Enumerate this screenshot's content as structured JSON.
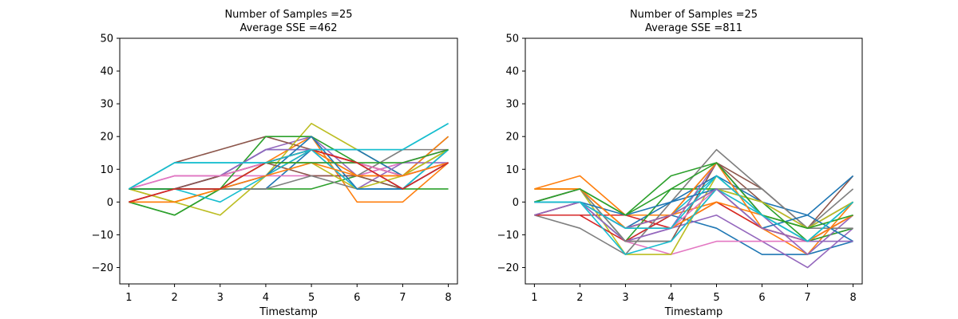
{
  "chart_data": [
    {
      "type": "line",
      "title_line1": "Number of Samples =25",
      "title_line2": "Average SSE =462",
      "xlabel": "Timestamp",
      "ylabel": "",
      "x": [
        1,
        2,
        3,
        4,
        5,
        6,
        7,
        8
      ],
      "xticks": [
        "1",
        "2",
        "3",
        "4",
        "5",
        "6",
        "7",
        "8"
      ],
      "yticks": [
        "−20",
        "−10",
        "0",
        "10",
        "20",
        "30",
        "40",
        "50"
      ],
      "ylim": [
        -25,
        50
      ],
      "xlim": [
        0.8,
        8.2
      ],
      "grid": false,
      "series": [
        {
          "color": "#1f77b4",
          "values": [
            4,
            4,
            4,
            4,
            16,
            12,
            4,
            16
          ]
        },
        {
          "color": "#ff7f0e",
          "values": [
            0,
            0,
            4,
            12,
            20,
            0,
            0,
            12
          ]
        },
        {
          "color": "#2ca02c",
          "values": [
            0,
            -4,
            4,
            4,
            4,
            8,
            4,
            4
          ]
        },
        {
          "color": "#d62728",
          "values": [
            0,
            4,
            8,
            12,
            16,
            12,
            8,
            12
          ]
        },
        {
          "color": "#9467bd",
          "values": [
            4,
            8,
            8,
            16,
            20,
            8,
            12,
            16
          ]
        },
        {
          "color": "#8c564b",
          "values": [
            4,
            12,
            16,
            20,
            16,
            12,
            4,
            12
          ]
        },
        {
          "color": "#e377c2",
          "values": [
            4,
            8,
            8,
            8,
            8,
            8,
            12,
            16
          ]
        },
        {
          "color": "#7f7f7f",
          "values": [
            4,
            4,
            8,
            12,
            16,
            8,
            16,
            16
          ]
        },
        {
          "color": "#bcbd22",
          "values": [
            4,
            0,
            -4,
            8,
            24,
            16,
            8,
            20
          ]
        },
        {
          "color": "#17becf",
          "values": [
            4,
            12,
            12,
            12,
            16,
            16,
            16,
            24
          ]
        },
        {
          "color": "#1f77b4",
          "values": [
            4,
            4,
            8,
            16,
            16,
            16,
            8,
            20
          ]
        },
        {
          "color": "#ff7f0e",
          "values": [
            4,
            4,
            4,
            12,
            16,
            8,
            8,
            20
          ]
        },
        {
          "color": "#2ca02c",
          "values": [
            0,
            -4,
            4,
            20,
            20,
            12,
            8,
            16
          ]
        },
        {
          "color": "#d62728",
          "values": [
            4,
            4,
            4,
            8,
            16,
            12,
            8,
            12
          ]
        },
        {
          "color": "#9467bd",
          "values": [
            4,
            4,
            8,
            16,
            16,
            4,
            12,
            12
          ]
        },
        {
          "color": "#8c564b",
          "values": [
            0,
            4,
            8,
            12,
            8,
            8,
            4,
            12
          ]
        },
        {
          "color": "#e377c2",
          "values": [
            4,
            8,
            8,
            12,
            12,
            12,
            8,
            12
          ]
        },
        {
          "color": "#7f7f7f",
          "values": [
            4,
            4,
            4,
            4,
            8,
            4,
            4,
            16
          ]
        },
        {
          "color": "#bcbd22",
          "values": [
            4,
            0,
            4,
            12,
            12,
            4,
            8,
            16
          ]
        },
        {
          "color": "#17becf",
          "values": [
            4,
            4,
            0,
            8,
            16,
            4,
            4,
            16
          ]
        },
        {
          "color": "#1f77b4",
          "values": [
            4,
            4,
            4,
            8,
            20,
            4,
            4,
            12
          ]
        },
        {
          "color": "#ff7f0e",
          "values": [
            0,
            0,
            4,
            8,
            12,
            8,
            8,
            12
          ]
        },
        {
          "color": "#2ca02c",
          "values": [
            4,
            4,
            4,
            12,
            12,
            12,
            12,
            16
          ]
        },
        {
          "color": "#d62728",
          "values": [
            0,
            4,
            4,
            12,
            16,
            12,
            4,
            12
          ]
        },
        {
          "color": "#17becf",
          "values": [
            4,
            12,
            12,
            12,
            16,
            16,
            16,
            24
          ]
        }
      ]
    },
    {
      "type": "line",
      "title_line1": "Number of Samples =25",
      "title_line2": "Average SSE =811",
      "xlabel": "Timestamp",
      "ylabel": "",
      "x": [
        1,
        2,
        3,
        4,
        5,
        6,
        7,
        8
      ],
      "xticks": [
        "1",
        "2",
        "3",
        "4",
        "5",
        "6",
        "7",
        "8"
      ],
      "yticks": [
        "−20",
        "−10",
        "0",
        "10",
        "20",
        "30",
        "40",
        "50"
      ],
      "ylim": [
        -25,
        50
      ],
      "xlim": [
        0.8,
        8.2
      ],
      "grid": false,
      "series": [
        {
          "color": "#1f77b4",
          "values": [
            0,
            0,
            -8,
            -4,
            -8,
            -16,
            -16,
            -12
          ]
        },
        {
          "color": "#ff7f0e",
          "values": [
            4,
            8,
            -4,
            -4,
            0,
            -8,
            -16,
            0
          ]
        },
        {
          "color": "#2ca02c",
          "values": [
            0,
            4,
            -4,
            8,
            12,
            -4,
            -8,
            0
          ]
        },
        {
          "color": "#d62728",
          "values": [
            -4,
            -4,
            -4,
            -8,
            0,
            -8,
            -12,
            -4
          ]
        },
        {
          "color": "#9467bd",
          "values": [
            -4,
            0,
            -12,
            -8,
            -4,
            -12,
            -20,
            -8
          ]
        },
        {
          "color": "#8c564b",
          "values": [
            -4,
            0,
            -12,
            -12,
            12,
            4,
            -8,
            8
          ]
        },
        {
          "color": "#e377c2",
          "values": [
            -4,
            0,
            -12,
            -16,
            -12,
            -12,
            -12,
            -8
          ]
        },
        {
          "color": "#7f7f7f",
          "values": [
            -4,
            -8,
            -16,
            0,
            16,
            4,
            -8,
            4
          ]
        },
        {
          "color": "#bcbd22",
          "values": [
            4,
            4,
            -16,
            -16,
            8,
            -4,
            -8,
            -4
          ]
        },
        {
          "color": "#17becf",
          "values": [
            0,
            0,
            -12,
            -4,
            8,
            -4,
            -12,
            -4
          ]
        },
        {
          "color": "#1f77b4",
          "values": [
            0,
            0,
            -8,
            0,
            8,
            0,
            -4,
            8
          ]
        },
        {
          "color": "#ff7f0e",
          "values": [
            4,
            4,
            -8,
            -8,
            0,
            -4,
            -12,
            0
          ]
        },
        {
          "color": "#2ca02c",
          "values": [
            0,
            4,
            -12,
            4,
            4,
            0,
            -12,
            -8
          ]
        },
        {
          "color": "#d62728",
          "values": [
            -4,
            -4,
            -12,
            -4,
            4,
            -8,
            -12,
            -4
          ]
        },
        {
          "color": "#9467bd",
          "values": [
            0,
            0,
            -12,
            -8,
            12,
            -4,
            -16,
            -4
          ]
        },
        {
          "color": "#8c564b",
          "values": [
            -4,
            0,
            -8,
            -4,
            12,
            0,
            -8,
            0
          ]
        },
        {
          "color": "#e377c2",
          "values": [
            0,
            4,
            -8,
            -8,
            4,
            -4,
            -12,
            -4
          ]
        },
        {
          "color": "#7f7f7f",
          "values": [
            0,
            4,
            -12,
            -12,
            4,
            4,
            -8,
            -8
          ]
        },
        {
          "color": "#bcbd22",
          "values": [
            4,
            4,
            -8,
            -4,
            4,
            0,
            -8,
            0
          ]
        },
        {
          "color": "#17becf",
          "values": [
            0,
            0,
            -16,
            -12,
            4,
            -4,
            -12,
            0
          ]
        },
        {
          "color": "#1f77b4",
          "values": [
            0,
            0,
            -4,
            0,
            4,
            -8,
            -4,
            -12
          ]
        },
        {
          "color": "#ff7f0e",
          "values": [
            4,
            4,
            -8,
            -4,
            12,
            -8,
            -12,
            -4
          ]
        },
        {
          "color": "#2ca02c",
          "values": [
            0,
            4,
            -4,
            4,
            12,
            -4,
            -8,
            -4
          ]
        },
        {
          "color": "#9467bd",
          "values": [
            -4,
            0,
            -8,
            -4,
            4,
            -8,
            -12,
            -12
          ]
        },
        {
          "color": "#17becf",
          "values": [
            0,
            0,
            -8,
            -8,
            8,
            -4,
            -12,
            0
          ]
        }
      ]
    }
  ]
}
